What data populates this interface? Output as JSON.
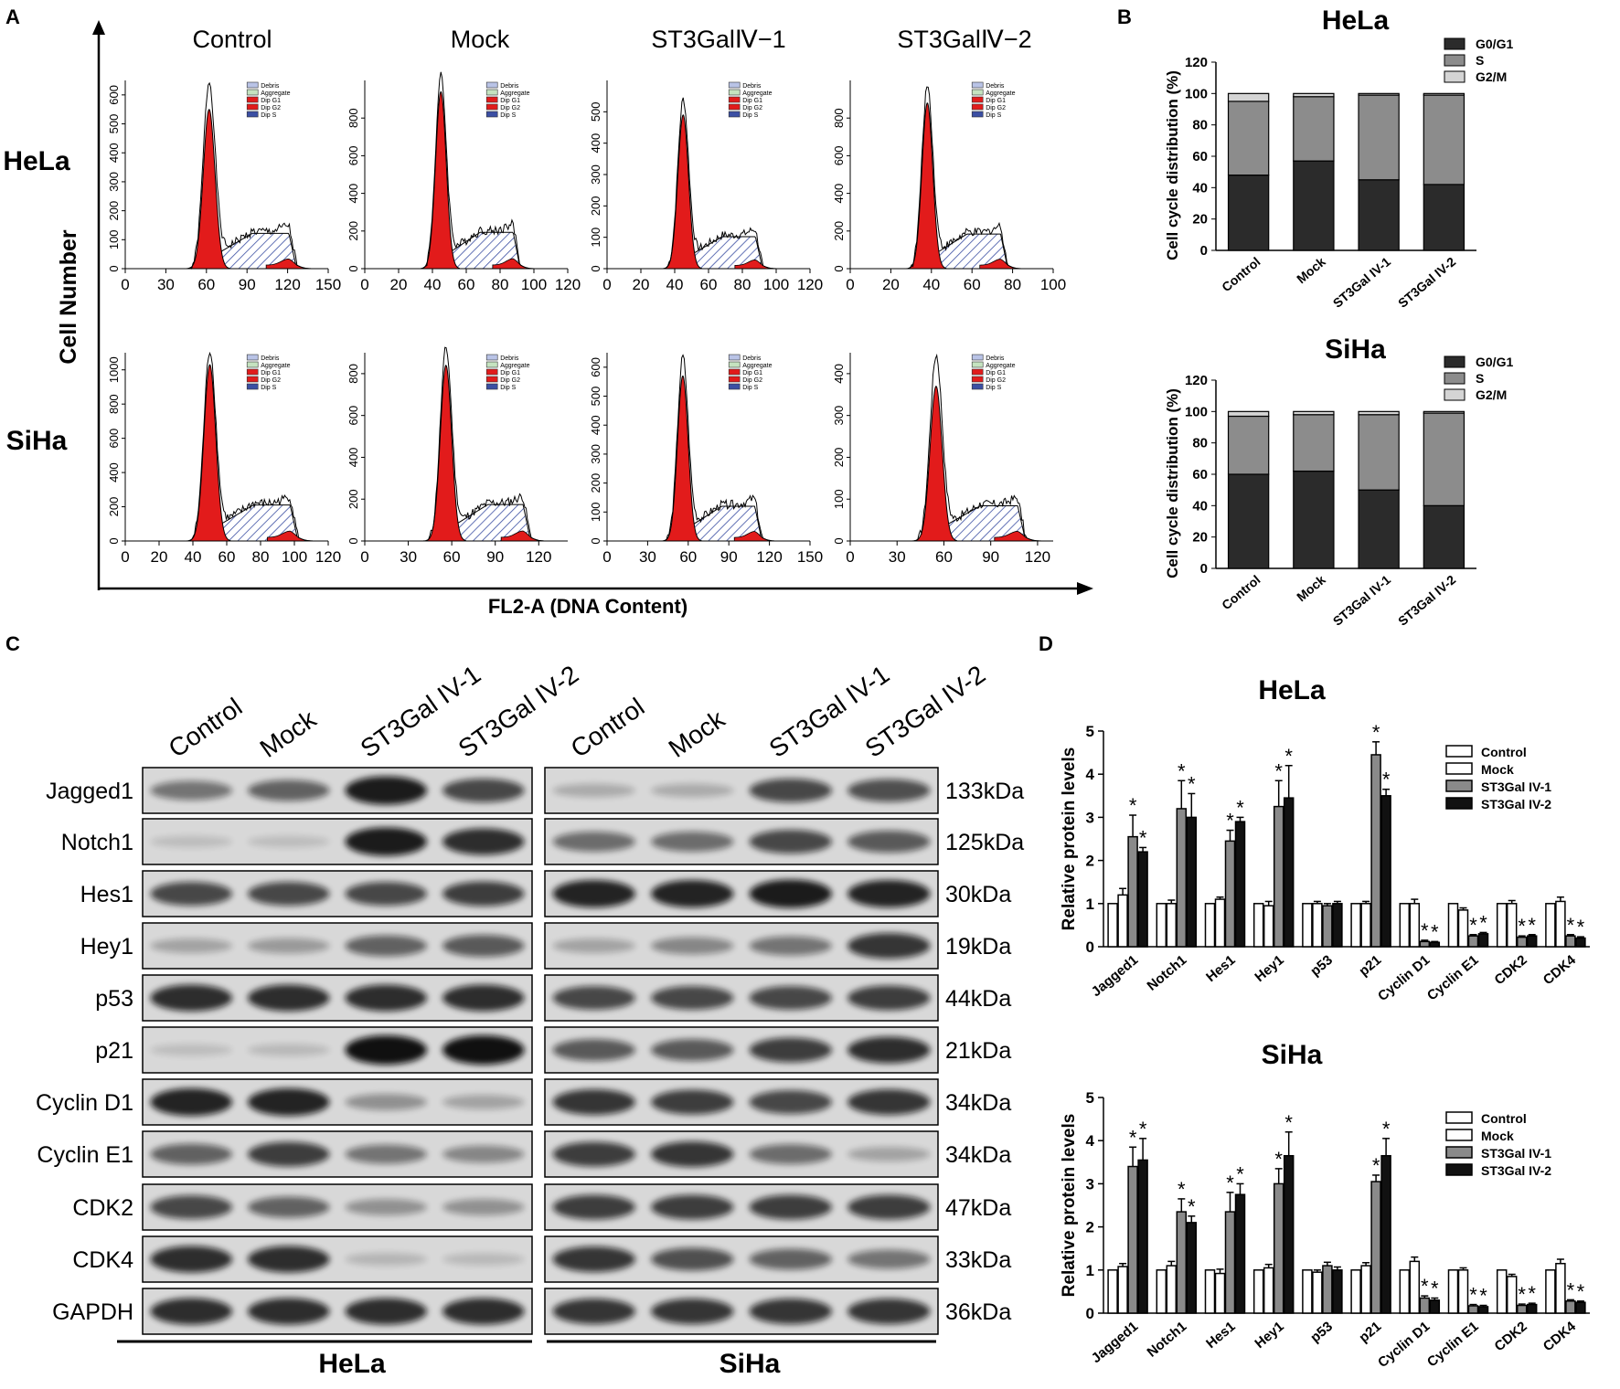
{
  "panel_labels": {
    "a": "A",
    "b": "B",
    "c": "C",
    "d": "D"
  },
  "flow": {
    "y_axis_label": "Cell Number",
    "x_axis_label": "FL2-A (DNA Content)",
    "columns": [
      "Control",
      "Mock",
      "ST3GalⅣ−1",
      "ST3GalⅣ−2"
    ],
    "rows": [
      "HeLa",
      "SiHa"
    ],
    "legend": [
      "Debris",
      "Aggregate",
      "Dip G1",
      "Dip G2",
      "Dip S"
    ],
    "plots": [
      {
        "row": 0,
        "col": 0,
        "xticks": [
          "0",
          "30",
          "60",
          "90",
          "120",
          "150"
        ],
        "xmax": 150,
        "yticks": [
          "0",
          "100",
          "200",
          "300",
          "400",
          "500",
          "600"
        ],
        "ymax": 650,
        "g1_pos": 62,
        "g1_h": 550,
        "total_h": 610
      },
      {
        "row": 0,
        "col": 1,
        "xticks": [
          "0",
          "20",
          "40",
          "60",
          "80",
          "100",
          "120"
        ],
        "xmax": 120,
        "yticks": [
          "0",
          "200",
          "400",
          "600",
          "800"
        ],
        "ymax": 1000,
        "g1_pos": 45,
        "g1_h": 940,
        "total_h": 965
      },
      {
        "row": 0,
        "col": 2,
        "xticks": [
          "0",
          "20",
          "40",
          "60",
          "80",
          "100",
          "120"
        ],
        "xmax": 120,
        "yticks": [
          "0",
          "100",
          "200",
          "300",
          "400",
          "500"
        ],
        "ymax": 600,
        "g1_pos": 45,
        "g1_h": 490,
        "total_h": 510
      },
      {
        "row": 0,
        "col": 3,
        "xticks": [
          "0",
          "20",
          "40",
          "60",
          "80",
          "100"
        ],
        "xmax": 100,
        "yticks": [
          "0",
          "200",
          "400",
          "600",
          "800"
        ],
        "ymax": 1000,
        "g1_pos": 38,
        "g1_h": 880,
        "total_h": 920
      },
      {
        "row": 1,
        "col": 0,
        "xticks": [
          "0",
          "20",
          "40",
          "60",
          "80",
          "100",
          "120"
        ],
        "xmax": 120,
        "yticks": [
          "0",
          "200",
          "400",
          "600",
          "800",
          "1000"
        ],
        "ymax": 1100,
        "g1_pos": 50,
        "g1_h": 1030,
        "total_h": 1050
      },
      {
        "row": 1,
        "col": 1,
        "xticks": [
          "0",
          "30",
          "60",
          "90",
          "120"
        ],
        "xmax": 140,
        "yticks": [
          "0",
          "200",
          "400",
          "600",
          "800"
        ],
        "ymax": 900,
        "g1_pos": 56,
        "g1_h": 840,
        "total_h": 870
      },
      {
        "row": 1,
        "col": 2,
        "xticks": [
          "0",
          "30",
          "60",
          "90",
          "120",
          "150"
        ],
        "xmax": 150,
        "yticks": [
          "0",
          "100",
          "200",
          "300",
          "400",
          "500",
          "600"
        ],
        "ymax": 650,
        "g1_pos": 56,
        "g1_h": 570,
        "total_h": 600
      },
      {
        "row": 1,
        "col": 3,
        "xticks": [
          "0",
          "30",
          "60",
          "90",
          "120"
        ],
        "xmax": 130,
        "yticks": [
          "0",
          "100",
          "200",
          "300",
          "400"
        ],
        "ymax": 450,
        "g1_pos": 55,
        "g1_h": 370,
        "total_h": 420
      }
    ]
  },
  "blot": {
    "lanes": [
      "Control",
      "Mock",
      "ST3Gal IV-1",
      "ST3Gal IV-2"
    ],
    "cell_lines": [
      "HeLa",
      "SiHa"
    ],
    "proteins": [
      "Jagged1",
      "Notch1",
      "Hes1",
      "Hey1",
      "p53",
      "p21",
      "Cyclin D1",
      "Cyclin E1",
      "CDK2",
      "CDK4",
      "GAPDH"
    ],
    "sizes": [
      "133kDa",
      "125kDa",
      "30kDa",
      "19kDa",
      "44kDa",
      "21kDa",
      "34kDa",
      "34kDa",
      "47kDa",
      "33kDa",
      "36kDa"
    ],
    "hela_intensity": [
      [
        0.45,
        0.55,
        0.95,
        0.7
      ],
      [
        0.05,
        0.05,
        0.95,
        0.85
      ],
      [
        0.7,
        0.7,
        0.7,
        0.75
      ],
      [
        0.2,
        0.25,
        0.55,
        0.6
      ],
      [
        0.85,
        0.85,
        0.85,
        0.85
      ],
      [
        0.05,
        0.08,
        1.0,
        1.0
      ],
      [
        0.9,
        0.9,
        0.3,
        0.2
      ],
      [
        0.55,
        0.75,
        0.45,
        0.35
      ],
      [
        0.7,
        0.55,
        0.3,
        0.3
      ],
      [
        0.85,
        0.85,
        0.1,
        0.08
      ],
      [
        0.85,
        0.85,
        0.85,
        0.85
      ]
    ],
    "siha_intensity": [
      [
        0.15,
        0.15,
        0.7,
        0.65
      ],
      [
        0.5,
        0.5,
        0.7,
        0.6
      ],
      [
        0.9,
        0.9,
        0.95,
        0.9
      ],
      [
        0.2,
        0.35,
        0.45,
        0.8
      ],
      [
        0.7,
        0.7,
        0.7,
        0.75
      ],
      [
        0.6,
        0.6,
        0.75,
        0.85
      ],
      [
        0.8,
        0.75,
        0.7,
        0.8
      ],
      [
        0.75,
        0.8,
        0.5,
        0.2
      ],
      [
        0.75,
        0.75,
        0.75,
        0.75
      ],
      [
        0.8,
        0.65,
        0.55,
        0.45
      ],
      [
        0.8,
        0.8,
        0.8,
        0.8
      ]
    ],
    "colors": {
      "membrane": "#d8d8d8",
      "band": "#111111"
    }
  },
  "chart_data": [
    {
      "type": "bar",
      "stacked": true,
      "title": "HeLa",
      "categories": [
        "Control",
        "Mock",
        "ST3Gal IV-1",
        "ST3Gal IV-2"
      ],
      "series": [
        {
          "name": "G0/G1",
          "values": [
            48,
            57,
            45,
            42
          ],
          "color": "#2b2b2b"
        },
        {
          "name": "S",
          "values": [
            47,
            41,
            54,
            57
          ],
          "color": "#8c8c8c"
        },
        {
          "name": "G2/M",
          "values": [
            5,
            2,
            1,
            1
          ],
          "color": "#d4d4d4"
        }
      ],
      "ylabel": "Cell cycle distribution (%)",
      "ylim": [
        0,
        120
      ],
      "yticks": [
        "0",
        "20",
        "40",
        "60",
        "80",
        "100",
        "120"
      ],
      "legend": "top-right"
    },
    {
      "type": "bar",
      "stacked": true,
      "title": "SiHa",
      "categories": [
        "Control",
        "Mock",
        "ST3Gal IV-1",
        "ST3Gal IV-2"
      ],
      "series": [
        {
          "name": "G0/G1",
          "values": [
            60,
            62,
            50,
            40
          ],
          "color": "#2b2b2b"
        },
        {
          "name": "S",
          "values": [
            37,
            36,
            48,
            59
          ],
          "color": "#8c8c8c"
        },
        {
          "name": "G2/M",
          "values": [
            3,
            2,
            2,
            1
          ],
          "color": "#d4d4d4"
        }
      ],
      "ylabel": "Cell cycle distribution (%)",
      "ylim": [
        0,
        120
      ],
      "yticks": [
        "0",
        "20",
        "40",
        "60",
        "80",
        "100",
        "120"
      ],
      "legend": "top-right"
    },
    {
      "type": "bar",
      "title": "HeLa",
      "categories": [
        "Jagged1",
        "Notch1",
        "Hes1",
        "Hey1",
        "p53",
        "p21",
        "Cyclin D1",
        "Cyclin E1",
        "CDK2",
        "CDK4"
      ],
      "series": [
        {
          "name": "Control",
          "values": [
            1,
            1,
            1,
            1,
            1,
            1,
            1,
            1,
            1,
            1
          ],
          "errors": [
            0,
            0,
            0,
            0,
            0,
            0,
            0,
            0,
            0,
            0
          ],
          "color": "#ffffff"
        },
        {
          "name": "Mock",
          "values": [
            1.2,
            1.0,
            1.1,
            0.95,
            1.0,
            1.0,
            1.0,
            0.85,
            1.0,
            1.05
          ],
          "errors": [
            0.15,
            0.08,
            0.05,
            0.1,
            0.05,
            0.05,
            0.1,
            0.05,
            0.07,
            0.1
          ],
          "color": "#ffffff"
        },
        {
          "name": "ST3Gal IV-1",
          "values": [
            2.55,
            3.2,
            2.45,
            3.25,
            0.95,
            4.45,
            0.12,
            0.25,
            0.22,
            0.25
          ],
          "errors": [
            0.5,
            0.65,
            0.25,
            0.6,
            0.05,
            0.3,
            0.03,
            0.03,
            0.03,
            0.03
          ],
          "color": "#8a8a8a"
        },
        {
          "name": "ST3Gal IV-2",
          "values": [
            2.2,
            3.0,
            2.9,
            3.45,
            1.0,
            3.5,
            0.1,
            0.3,
            0.25,
            0.2
          ],
          "errors": [
            0.1,
            0.55,
            0.1,
            0.75,
            0.05,
            0.15,
            0.02,
            0.03,
            0.03,
            0.03
          ],
          "color": "#111111"
        }
      ],
      "significant_series": [
        "ST3Gal IV-1",
        "ST3Gal IV-2"
      ],
      "significant_categories": [
        "Jagged1",
        "Notch1",
        "Hes1",
        "Hey1",
        "p21",
        "Cyclin D1",
        "Cyclin E1",
        "CDK2",
        "CDK4"
      ],
      "annotation": "*",
      "xlabel": "",
      "ylabel": "Relative protein levels",
      "ylim": [
        0,
        5
      ],
      "yticks": [
        "0",
        "1",
        "2",
        "3",
        "4",
        "5"
      ],
      "legend": "top-right"
    },
    {
      "type": "bar",
      "title": "SiHa",
      "categories": [
        "Jagged1",
        "Notch1",
        "Hes1",
        "Hey1",
        "p53",
        "p21",
        "Cyclin D1",
        "Cyclin E1",
        "CDK2",
        "CDK4"
      ],
      "series": [
        {
          "name": "Control",
          "values": [
            1,
            1,
            1,
            1,
            1,
            1,
            1,
            1,
            1,
            1
          ],
          "errors": [
            0,
            0,
            0,
            0,
            0,
            0,
            0,
            0,
            0,
            0
          ],
          "color": "#ffffff"
        },
        {
          "name": "Mock",
          "values": [
            1.08,
            1.1,
            0.92,
            1.05,
            0.95,
            1.1,
            1.2,
            1.0,
            0.85,
            1.15
          ],
          "errors": [
            0.07,
            0.1,
            0.1,
            0.08,
            0.05,
            0.07,
            0.1,
            0.05,
            0.05,
            0.1
          ],
          "color": "#ffffff"
        },
        {
          "name": "ST3Gal IV-1",
          "values": [
            3.4,
            2.35,
            2.35,
            3.0,
            1.1,
            3.05,
            0.35,
            0.17,
            0.18,
            0.28
          ],
          "errors": [
            0.45,
            0.3,
            0.45,
            0.35,
            0.08,
            0.15,
            0.05,
            0.03,
            0.03,
            0.03
          ],
          "color": "#8a8a8a"
        },
        {
          "name": "ST3Gal IV-2",
          "values": [
            3.55,
            2.1,
            2.75,
            3.65,
            1.0,
            3.65,
            0.3,
            0.15,
            0.2,
            0.25
          ],
          "errors": [
            0.5,
            0.15,
            0.25,
            0.55,
            0.07,
            0.4,
            0.05,
            0.03,
            0.03,
            0.03
          ],
          "color": "#111111"
        }
      ],
      "significant_series": [
        "ST3Gal IV-1",
        "ST3Gal IV-2"
      ],
      "significant_categories": [
        "Jagged1",
        "Notch1",
        "Hes1",
        "Hey1",
        "p21",
        "Cyclin D1",
        "Cyclin E1",
        "CDK2",
        "CDK4"
      ],
      "annotation": "*",
      "xlabel": "",
      "ylabel": "Relative protein levels",
      "ylim": [
        0,
        5
      ],
      "yticks": [
        "0",
        "1",
        "2",
        "3",
        "4",
        "5"
      ],
      "legend": "top-right"
    }
  ],
  "colors": {
    "g1_fill": "#e21b1b",
    "s_hatch": "#3b4fa3",
    "axis": "#000000"
  }
}
